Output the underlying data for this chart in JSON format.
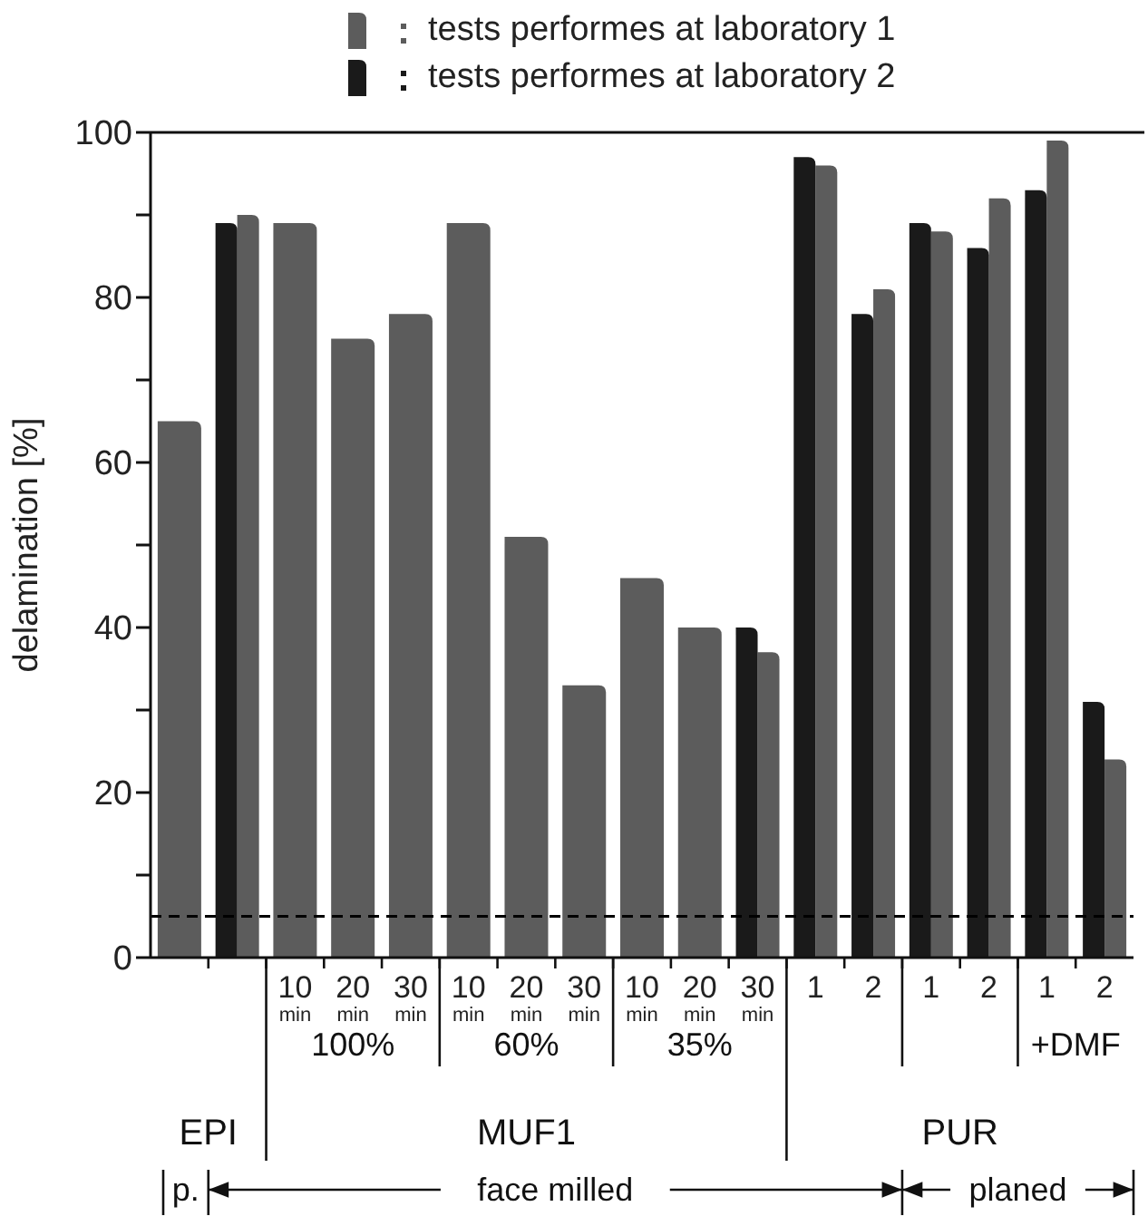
{
  "chart_data": {
    "type": "bar",
    "ylabel": "delamination [%]",
    "categories": [
      null,
      null,
      "10 min",
      "20 min",
      "30 min",
      "10 min",
      "20 min",
      "30 min",
      "10 min",
      "20 min",
      "30 min",
      "1",
      "2",
      "1",
      "2",
      "1",
      "2"
    ],
    "series": [
      {
        "name": "tests performes at laboratory 1",
        "color": "#5c5c5c",
        "values": [
          65,
          90,
          89,
          75,
          78,
          89,
          51,
          33,
          46,
          40,
          37,
          96,
          81,
          88,
          92,
          99,
          24
        ]
      },
      {
        "name": "tests performes at laboratory 2",
        "color": "#1a1a1a",
        "values": [
          null,
          89,
          null,
          null,
          null,
          null,
          null,
          null,
          null,
          null,
          40,
          97,
          78,
          89,
          86,
          93,
          31
        ]
      }
    ],
    "ylim": [
      0,
      100
    ],
    "yticks": [
      0,
      {
        "value": 10,
        "label": null
      },
      20,
      {
        "value": 30,
        "label": null
      },
      40,
      {
        "value": 50,
        "label": null
      },
      60,
      {
        "value": 70,
        "label": null
      },
      80,
      {
        "value": 90,
        "label": null
      },
      100
    ],
    "ref_lines": [
      {
        "axis": "y",
        "value": 5,
        "color": "#000000",
        "line_style": "dashed"
      }
    ],
    "legend": "top",
    "annotations": [
      "100%",
      "60%",
      "35%",
      "+DMF",
      "EPI",
      "MUF1",
      "PUR",
      "p.",
      "face milled",
      "planed"
    ]
  }
}
